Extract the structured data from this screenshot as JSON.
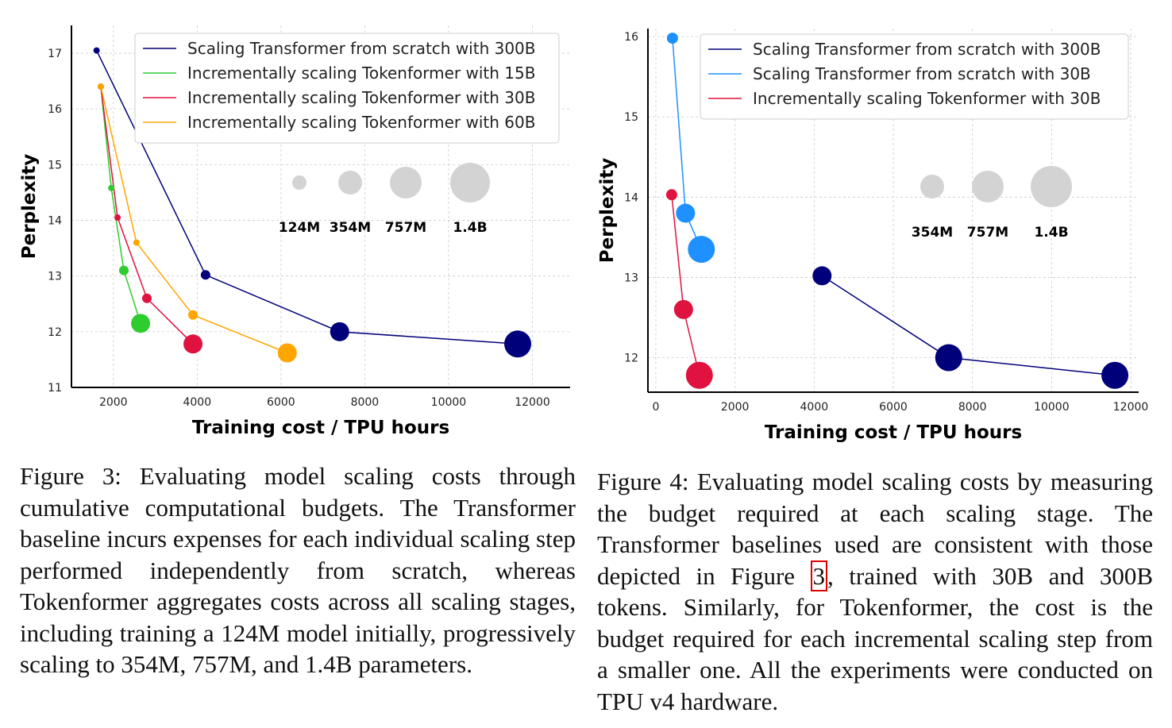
{
  "chart_data": [
    {
      "id": "figure-3",
      "type": "scatter",
      "xlabel": "Training cost / TPU hours",
      "ylabel": "Perplexity",
      "xlim": [
        1000,
        12900
      ],
      "ylim": [
        11,
        17.5
      ],
      "xticks": [
        2000,
        4000,
        6000,
        8000,
        10000,
        12000
      ],
      "yticks": [
        11,
        12,
        13,
        14,
        15,
        16,
        17
      ],
      "grid": true,
      "legend_position": "top-right",
      "series": [
        {
          "name": "Scaling Transformer from scratch with 300B",
          "color": "#00007a",
          "points": [
            [
              1600,
              17.05,
              "124M"
            ],
            [
              4200,
              13.02,
              "354M"
            ],
            [
              7400,
              12.0,
              "757M"
            ],
            [
              11650,
              11.78,
              "1.4B"
            ]
          ]
        },
        {
          "name": "Incrementally scaling Tokenformer with 15B",
          "color": "#2ecc2e",
          "points": [
            [
              1700,
              16.4,
              "124M"
            ],
            [
              1950,
              14.58,
              "124M"
            ],
            [
              2250,
              13.1,
              "354M"
            ],
            [
              2650,
              12.15,
              "757M"
            ]
          ]
        },
        {
          "name": "Incrementally scaling Tokenformer with 30B",
          "color": "#e0123f",
          "points": [
            [
              1700,
              16.4,
              "124M"
            ],
            [
              2100,
              14.05,
              "124M"
            ],
            [
              2800,
              12.6,
              "354M"
            ],
            [
              3900,
              11.78,
              "757M"
            ]
          ]
        },
        {
          "name": "Incrementally scaling Tokenformer with 60B",
          "color": "#ffa500",
          "points": [
            [
              1700,
              16.4,
              "124M"
            ],
            [
              2550,
              13.6,
              "124M"
            ],
            [
              3900,
              12.3,
              "354M"
            ],
            [
              6150,
              11.62,
              "757M"
            ]
          ]
        }
      ],
      "size_legend": [
        "124M",
        "354M",
        "757M",
        "1.4B"
      ]
    },
    {
      "id": "figure-4",
      "type": "scatter",
      "xlabel": "Training cost / TPU hours",
      "ylabel": "Perplexity",
      "xlim": [
        -200,
        12200
      ],
      "ylim": [
        11.57,
        16.1
      ],
      "xticks": [
        0,
        2000,
        4000,
        6000,
        8000,
        10000,
        12000
      ],
      "yticks": [
        12,
        13,
        14,
        15,
        16
      ],
      "grid": true,
      "legend_position": "top-right",
      "series": [
        {
          "name": "Scaling Transformer from scratch with 300B",
          "color": "#00007a",
          "points": [
            [
              4200,
              13.02,
              "354M"
            ],
            [
              7400,
              12.0,
              "757M"
            ],
            [
              11600,
              11.78,
              "1.4B"
            ]
          ]
        },
        {
          "name": "Scaling Transformer from scratch with 30B",
          "color": "#1e90ff",
          "points": [
            [
              420,
              15.98,
              "124M"
            ],
            [
              750,
              13.8,
              "354M"
            ],
            [
              1150,
              13.35,
              "757M"
            ]
          ]
        },
        {
          "name": "Incrementally scaling Tokenformer with 30B",
          "color": "#e0123f",
          "points": [
            [
              400,
              14.03,
              "124M"
            ],
            [
              700,
              12.6,
              "354M"
            ],
            [
              1100,
              11.78,
              "757M"
            ]
          ]
        }
      ],
      "size_legend": [
        "354M",
        "757M",
        "1.4B"
      ]
    }
  ],
  "captions": {
    "fig3": "Figure 3: Evaluating model scaling costs through cumulative computational budgets. The Transformer baseline incurs expenses for each individual scaling step performed independently from scratch, whereas Tokenformer aggregates costs across all scaling stages, including training a 124M model initially, progressively scaling to 354M, 757M, and 1.4B parameters.",
    "fig4_before": "Figure 4: Evaluating model scaling costs by measuring the budget required at each scaling stage. The Transformer baselines used are consistent with those depicted in Figure ",
    "fig4_ref": "3",
    "fig4_after": ", trained with 30B and 300B tokens. Similarly, for Tokenformer, the cost is the budget required for each incremental scaling step from a smaller one. All the experiments were conducted on TPU v4 hardware."
  },
  "colors": {
    "bubble_legend": "#d3d3d3",
    "grid": "#cccccc",
    "ref_box": "#e00000"
  }
}
